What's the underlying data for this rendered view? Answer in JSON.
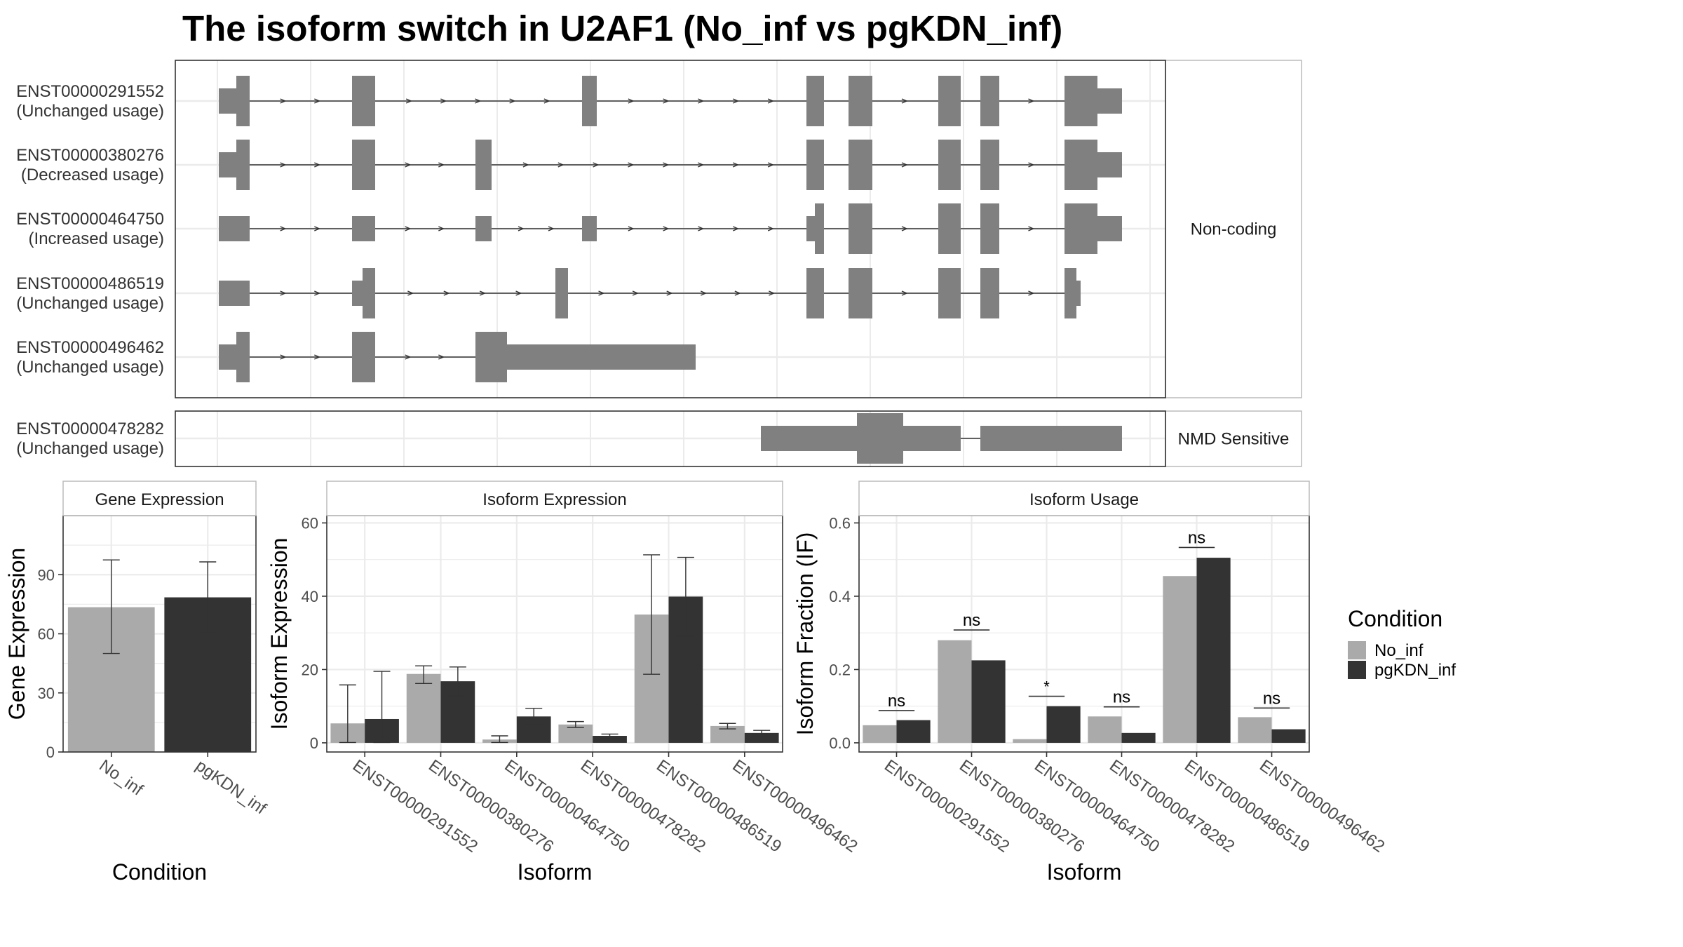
{
  "title": "The isoform switch in U2AF1 (No_inf vs pgKDN_inf)",
  "colors": {
    "no_inf": "#aaaaaa",
    "pgkdn_inf": "#333333",
    "exon": "#808080",
    "intron": "#333333",
    "grid": "#ebebeb",
    "strip_bg": "#ffffff",
    "border": "#333333"
  },
  "structure": {
    "facets": [
      {
        "label": "Non-coding",
        "transcripts": [
          {
            "id": "ENST00000291552",
            "usage": "(Unchanged usage)"
          },
          {
            "id": "ENST00000380276",
            "usage": "(Decreased usage)"
          },
          {
            "id": "ENST00000464750",
            "usage": "(Increased usage)"
          },
          {
            "id": "ENST00000486519",
            "usage": "(Unchanged usage)"
          },
          {
            "id": "ENST00000496462",
            "usage": "(Unchanged usage)"
          }
        ]
      },
      {
        "label": "NMD Sensitive",
        "transcripts": [
          {
            "id": "ENST00000478282",
            "usage": "(Unchanged usage)"
          }
        ]
      }
    ]
  },
  "chart_data": [
    {
      "type": "bar",
      "panel": "Gene Expression",
      "categories": [
        "No_inf",
        "pgKDN_inf"
      ],
      "values": [
        73.5,
        78.5
      ],
      "error_low": [
        50,
        60.5
      ],
      "error_high": [
        97.5,
        96.5
      ],
      "ylim": [
        0,
        120
      ],
      "yticks": [
        0,
        30,
        60,
        90
      ],
      "xlabel": "Condition",
      "ylabel": "Gene Expression"
    },
    {
      "type": "bar",
      "panel": "Isoform Expression",
      "categories": [
        "ENST00000291552",
        "ENST00000380276",
        "ENST00000464750",
        "ENST00000478282",
        "ENST00000486519",
        "ENST00000496462"
      ],
      "series": [
        {
          "name": "No_inf",
          "values": [
            5.3,
            18.8,
            0.9,
            5.0,
            35.0,
            4.6
          ],
          "error_low": [
            0.1,
            16.2,
            0.1,
            4.2,
            18.7,
            3.8
          ],
          "error_high": [
            15.8,
            21.0,
            1.9,
            5.8,
            51.3,
            5.3
          ]
        },
        {
          "name": "pgKDN_inf",
          "values": [
            6.5,
            16.8,
            7.2,
            1.9,
            39.9,
            2.7
          ],
          "error_low": [
            0.1,
            12.8,
            5.0,
            1.4,
            29.2,
            2.0
          ],
          "error_high": [
            19.5,
            20.7,
            9.4,
            2.4,
            50.6,
            3.4
          ]
        }
      ],
      "ylim": [
        -2.5,
        62
      ],
      "yticks": [
        0,
        20,
        40,
        60
      ],
      "xlabel": "Isoform",
      "ylabel": "Isoform Expression"
    },
    {
      "type": "bar",
      "panel": "Isoform Usage",
      "categories": [
        "ENST00000291552",
        "ENST00000380276",
        "ENST00000464750",
        "ENST00000478282",
        "ENST00000486519",
        "ENST00000496462"
      ],
      "series": [
        {
          "name": "No_inf",
          "values": [
            0.048,
            0.28,
            0.01,
            0.072,
            0.455,
            0.07
          ]
        },
        {
          "name": "pgKDN_inf",
          "values": [
            0.062,
            0.225,
            0.1,
            0.027,
            0.505,
            0.037
          ]
        }
      ],
      "significance": [
        "ns",
        "ns",
        "*",
        "ns",
        "ns",
        "ns"
      ],
      "sig_y": [
        0.088,
        0.308,
        0.127,
        0.098,
        0.533,
        0.095
      ],
      "ylim": [
        -0.025,
        0.62
      ],
      "yticks": [
        0.0,
        0.2,
        0.4,
        0.6
      ],
      "xlabel": "Isoform",
      "ylabel": "Isoform Fraction (IF)"
    }
  ],
  "legend": {
    "title": "Condition",
    "items": [
      {
        "name": "No_inf"
      },
      {
        "name": "pgKDN_inf"
      }
    ]
  }
}
